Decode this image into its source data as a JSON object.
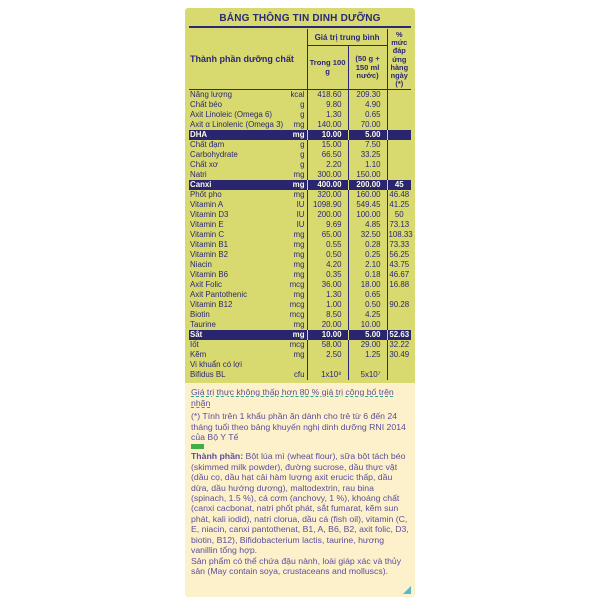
{
  "colors": {
    "table_background": "#d8d96e",
    "table_text_navy": "#2b2878",
    "highlight_row_background": "#29256f",
    "highlight_row_text": "#fdfbe8",
    "notes_background": "#fdf1cc",
    "notes_text_purple": "#5b4e9b",
    "guarantee_underline_teal": "#2fa08c",
    "green_mark": "#3fae49",
    "corner_triangle_blue": "#57b8c9"
  },
  "table": {
    "title": "BẢNG THÔNG TIN DINH DƯỠNG",
    "headers": {
      "nutrient": "Thành phần dưỡng chất",
      "average_value": "Giá trị trung bình",
      "per_100g": "Trong 100 g",
      "per_serving": "(50 g + 150 ml nước)",
      "daily_percent": "% mức đáp ứng hàng ngày (*)"
    },
    "rows": [
      {
        "name": "Năng lượng",
        "unit": "kcal",
        "per_100g": "418.60",
        "per_serving": "209.30",
        "daily_percent": "",
        "highlight": false
      },
      {
        "name": "Chất béo",
        "unit": "g",
        "per_100g": "9.80",
        "per_serving": "4.90",
        "daily_percent": "",
        "highlight": false
      },
      {
        "name": "Axit Linoleic (Omega 6)",
        "unit": "g",
        "per_100g": "1.30",
        "per_serving": "0.65",
        "daily_percent": "",
        "highlight": false
      },
      {
        "name": "Axit α Linolenic (Omega 3)",
        "unit": "mg",
        "per_100g": "140.00",
        "per_serving": "70.00",
        "daily_percent": "",
        "highlight": false
      },
      {
        "name": "DHA",
        "unit": "mg",
        "per_100g": "10.00",
        "per_serving": "5.00",
        "daily_percent": "",
        "highlight": true
      },
      {
        "name": "Chất đạm",
        "unit": "g",
        "per_100g": "15.00",
        "per_serving": "7.50",
        "daily_percent": "",
        "highlight": false
      },
      {
        "name": "Carbohydrate",
        "unit": "g",
        "per_100g": "66.50",
        "per_serving": "33.25",
        "daily_percent": "",
        "highlight": false
      },
      {
        "name": "Chất xơ",
        "unit": "g",
        "per_100g": "2.20",
        "per_serving": "1.10",
        "daily_percent": "",
        "highlight": false
      },
      {
        "name": "Natri",
        "unit": "mg",
        "per_100g": "300.00",
        "per_serving": "150.00",
        "daily_percent": "",
        "highlight": false
      },
      {
        "name": "Canxi",
        "unit": "mg",
        "per_100g": "400.00",
        "per_serving": "200.00",
        "daily_percent": "45",
        "highlight": true
      },
      {
        "name": "Phốt pho",
        "unit": "mg",
        "per_100g": "320.00",
        "per_serving": "160.00",
        "daily_percent": "46.48",
        "highlight": false
      },
      {
        "name": "Vitamin A",
        "unit": "IU",
        "per_100g": "1098.90",
        "per_serving": "549.45",
        "daily_percent": "41.25",
        "highlight": false
      },
      {
        "name": "Vitamin D3",
        "unit": "IU",
        "per_100g": "200.00",
        "per_serving": "100.00",
        "daily_percent": "50",
        "highlight": false
      },
      {
        "name": "Vitamin E",
        "unit": "IU",
        "per_100g": "9.69",
        "per_serving": "4.85",
        "daily_percent": "73.13",
        "highlight": false
      },
      {
        "name": "Vitamin C",
        "unit": "mg",
        "per_100g": "65.00",
        "per_serving": "32.50",
        "daily_percent": "108.33",
        "highlight": false
      },
      {
        "name": "Vitamin B1",
        "unit": "mg",
        "per_100g": "0.55",
        "per_serving": "0.28",
        "daily_percent": "73.33",
        "highlight": false
      },
      {
        "name": "Vitamin B2",
        "unit": "mg",
        "per_100g": "0.50",
        "per_serving": "0.25",
        "daily_percent": "56.25",
        "highlight": false
      },
      {
        "name": "Niacin",
        "unit": "mg",
        "per_100g": "4.20",
        "per_serving": "2.10",
        "daily_percent": "43.75",
        "highlight": false
      },
      {
        "name": "Vitamin B6",
        "unit": "mg",
        "per_100g": "0.35",
        "per_serving": "0.18",
        "daily_percent": "46.67",
        "highlight": false
      },
      {
        "name": "Axit Folic",
        "unit": "mcg",
        "per_100g": "36.00",
        "per_serving": "18.00",
        "daily_percent": "16.88",
        "highlight": false
      },
      {
        "name": "Axit Pantothenic",
        "unit": "mg",
        "per_100g": "1.30",
        "per_serving": "0.65",
        "daily_percent": "",
        "highlight": false
      },
      {
        "name": "Vitamin B12",
        "unit": "mcg",
        "per_100g": "1.00",
        "per_serving": "0.50",
        "daily_percent": "90.28",
        "highlight": false
      },
      {
        "name": "Biotin",
        "unit": "mcg",
        "per_100g": "8.50",
        "per_serving": "4.25",
        "daily_percent": "",
        "highlight": false
      },
      {
        "name": "Taurine",
        "unit": "mg",
        "per_100g": "20.00",
        "per_serving": "10.00",
        "daily_percent": "",
        "highlight": false
      },
      {
        "name": "Sắt",
        "unit": "mg",
        "per_100g": "10.00",
        "per_serving": "5.00",
        "daily_percent": "52.63",
        "highlight": true
      },
      {
        "name": "Iốt",
        "unit": "mcg",
        "per_100g": "58.00",
        "per_serving": "29.00",
        "daily_percent": "32.22",
        "highlight": false
      },
      {
        "name": "Kẽm",
        "unit": "mg",
        "per_100g": "2.50",
        "per_serving": "1.25",
        "daily_percent": "30.49",
        "highlight": false
      },
      {
        "name": "Vi khuẩn có lợi",
        "unit": "",
        "per_100g": "",
        "per_serving": "",
        "daily_percent": "",
        "highlight": false
      },
      {
        "name": "Bifidus BL",
        "unit": "cfu",
        "per_100g": "1x10⁸",
        "per_serving": "5x10⁷",
        "daily_percent": "",
        "highlight": false
      }
    ]
  },
  "notes": {
    "guarantee": "Giá trị thực không thấp hơn 80 % giá trị công bố trên nhãn",
    "footnote": "(*) Tính trên 1 khẩu phần ăn dành cho trẻ từ 6 đến 24 tháng tuổi theo bảng khuyến nghị dinh dưỡng RNI 2014 của Bộ Y Tế"
  },
  "ingredients": {
    "label": "Thành phần:",
    "text": " Bột lúa mì (wheat flour), sữa bột tách béo (skimmed milk powder), đường sucrose, dầu thực vật (dầu cọ, dầu hạt cải hàm lượng axit erucic thấp, dầu dừa, dầu hướng dương), maltodextrin, rau bina (spinach, 1.5 %), cá cơm (anchovy, 1 %), khoáng chất (canxi cacbonat, natri phốt phát, sắt fumarat, kẽm sun phát, kali iodid), natri clorua, dầu cá (fish oil), vitamin (C, E, niacin, canxi pantothenat, B1, A, B6, B2, axit folic, D3, biotin, B12), Bifidobacterium lactis, taurine, hương vanillin tổng hợp.",
    "allergen": "Sản phẩm có thể chứa đậu nành, loài giáp xác và thủy sản (May contain soya, crustaceans and molluscs)."
  }
}
